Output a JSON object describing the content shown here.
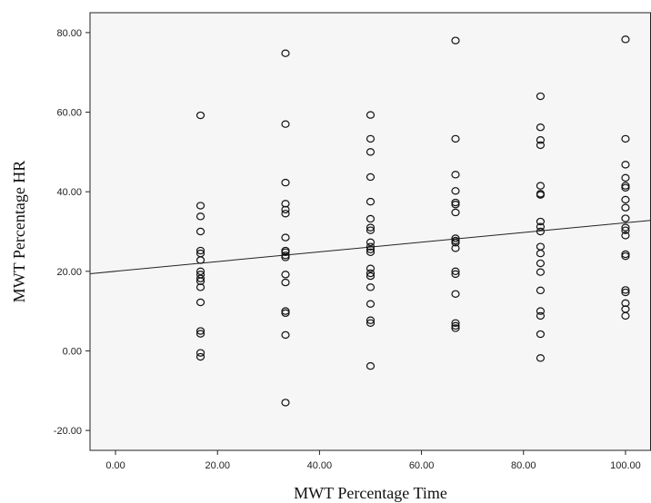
{
  "chart_data": {
    "type": "scatter",
    "title": "",
    "xlabel": "MWT Percentage Time",
    "ylabel": "MWT Percentage HR",
    "xlim": [
      -5,
      105
    ],
    "ylim": [
      -25,
      85
    ],
    "x_ticks": [
      "0.00",
      "20.00",
      "40.00",
      "60.00",
      "80.00",
      "100.00"
    ],
    "x_tick_values": [
      0,
      20,
      40,
      60,
      80,
      100
    ],
    "y_ticks": [
      "-20.00",
      "0.00",
      "20.00",
      "40.00",
      "60.00",
      "80.00"
    ],
    "y_tick_values": [
      -20,
      0,
      20,
      40,
      60,
      80
    ],
    "grid": false,
    "marker": "open-circle",
    "fit_line": {
      "type": "linear",
      "x": [
        -5,
        105
      ],
      "y": [
        19.4,
        32.8
      ]
    },
    "points": [
      [
        16.67,
        59.2
      ],
      [
        16.67,
        36.5
      ],
      [
        16.67,
        33.8
      ],
      [
        16.67,
        30.0
      ],
      [
        16.67,
        25.2
      ],
      [
        16.67,
        24.5
      ],
      [
        16.67,
        22.8
      ],
      [
        16.67,
        20.0
      ],
      [
        16.67,
        19.2
      ],
      [
        16.67,
        18.2
      ],
      [
        16.67,
        17.5
      ],
      [
        16.67,
        16.0
      ],
      [
        16.67,
        12.2
      ],
      [
        16.67,
        5.0
      ],
      [
        16.67,
        4.3
      ],
      [
        16.67,
        -0.5
      ],
      [
        16.67,
        -1.5
      ],
      [
        33.33,
        74.8
      ],
      [
        33.33,
        57.0
      ],
      [
        33.33,
        42.3
      ],
      [
        33.33,
        37.0
      ],
      [
        33.33,
        35.5
      ],
      [
        33.33,
        34.5
      ],
      [
        33.33,
        28.5
      ],
      [
        33.33,
        25.2
      ],
      [
        33.33,
        24.8
      ],
      [
        33.33,
        24.0
      ],
      [
        33.33,
        23.5
      ],
      [
        33.33,
        19.2
      ],
      [
        33.33,
        17.2
      ],
      [
        33.33,
        10.0
      ],
      [
        33.33,
        9.5
      ],
      [
        33.33,
        4.0
      ],
      [
        33.33,
        -13.0
      ],
      [
        50.0,
        59.3
      ],
      [
        50.0,
        53.3
      ],
      [
        50.0,
        50.0
      ],
      [
        50.0,
        43.7
      ],
      [
        50.0,
        37.5
      ],
      [
        50.0,
        33.2
      ],
      [
        50.0,
        31.0
      ],
      [
        50.0,
        30.3
      ],
      [
        50.0,
        27.3
      ],
      [
        50.0,
        26.2
      ],
      [
        50.0,
        25.5
      ],
      [
        50.0,
        24.8
      ],
      [
        50.0,
        20.7
      ],
      [
        50.0,
        19.5
      ],
      [
        50.0,
        18.8
      ],
      [
        50.0,
        16.0
      ],
      [
        50.0,
        11.8
      ],
      [
        50.0,
        7.7
      ],
      [
        50.0,
        7.0
      ],
      [
        50.0,
        -3.8
      ],
      [
        66.67,
        78.0
      ],
      [
        66.67,
        53.3
      ],
      [
        66.67,
        44.3
      ],
      [
        66.67,
        40.2
      ],
      [
        66.67,
        37.3
      ],
      [
        66.67,
        36.8
      ],
      [
        66.67,
        34.8
      ],
      [
        66.67,
        28.3
      ],
      [
        66.67,
        27.7
      ],
      [
        66.67,
        27.2
      ],
      [
        66.67,
        25.8
      ],
      [
        66.67,
        20.0
      ],
      [
        66.67,
        19.3
      ],
      [
        66.67,
        14.3
      ],
      [
        66.67,
        7.0
      ],
      [
        66.67,
        6.3
      ],
      [
        66.67,
        5.7
      ],
      [
        83.33,
        64.0
      ],
      [
        83.33,
        56.2
      ],
      [
        83.33,
        53.0
      ],
      [
        83.33,
        51.7
      ],
      [
        83.33,
        41.5
      ],
      [
        83.33,
        39.5
      ],
      [
        83.33,
        39.2
      ],
      [
        83.33,
        32.5
      ],
      [
        83.33,
        31.2
      ],
      [
        83.33,
        30.0
      ],
      [
        83.33,
        26.2
      ],
      [
        83.33,
        24.5
      ],
      [
        83.33,
        22.0
      ],
      [
        83.33,
        19.8
      ],
      [
        83.33,
        15.2
      ],
      [
        83.33,
        10.0
      ],
      [
        83.33,
        8.8
      ],
      [
        83.33,
        4.2
      ],
      [
        83.33,
        -1.8
      ],
      [
        100.0,
        78.3
      ],
      [
        100.0,
        53.3
      ],
      [
        100.0,
        46.8
      ],
      [
        100.0,
        43.5
      ],
      [
        100.0,
        41.5
      ],
      [
        100.0,
        41.0
      ],
      [
        100.0,
        38.0
      ],
      [
        100.0,
        36.0
      ],
      [
        100.0,
        33.3
      ],
      [
        100.0,
        31.0
      ],
      [
        100.0,
        30.3
      ],
      [
        100.0,
        29.0
      ],
      [
        100.0,
        24.3
      ],
      [
        100.0,
        23.8
      ],
      [
        100.0,
        15.3
      ],
      [
        100.0,
        14.7
      ],
      [
        100.0,
        12.0
      ],
      [
        100.0,
        10.5
      ],
      [
        100.0,
        8.8
      ]
    ]
  }
}
